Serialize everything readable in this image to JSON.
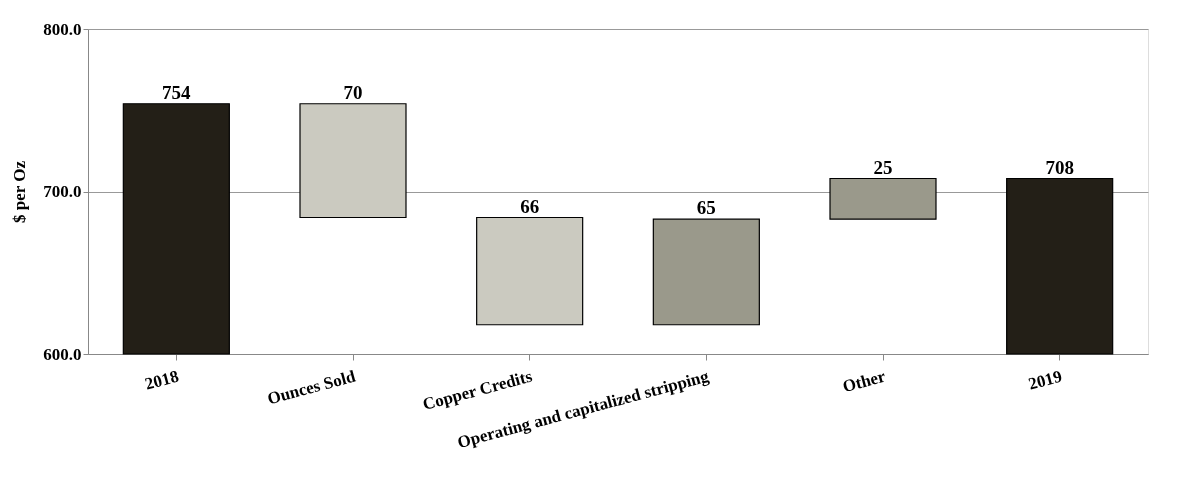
{
  "chart_data": {
    "type": "bar",
    "ylabel": "$ per Oz",
    "categories": [
      "2018",
      "Ounces Sold",
      "Copper Credits",
      "Operating and capitalized stripping",
      "Other",
      "2019"
    ],
    "values": [
      754,
      70,
      66,
      65,
      25,
      708
    ],
    "base": [
      null,
      684,
      618,
      618,
      683,
      null
    ],
    "colors": [
      "#231f17",
      "#cbcac0",
      "#cbcac0",
      "#9a998b",
      "#9a998b",
      "#231f17"
    ],
    "ylim": [
      600,
      800
    ],
    "yticks": [
      {
        "value": 600,
        "label": "600.0"
      },
      {
        "value": 700,
        "label": "700.0"
      },
      {
        "value": 800,
        "label": "800.0"
      }
    ],
    "grid": "y",
    "data_labels": true
  }
}
